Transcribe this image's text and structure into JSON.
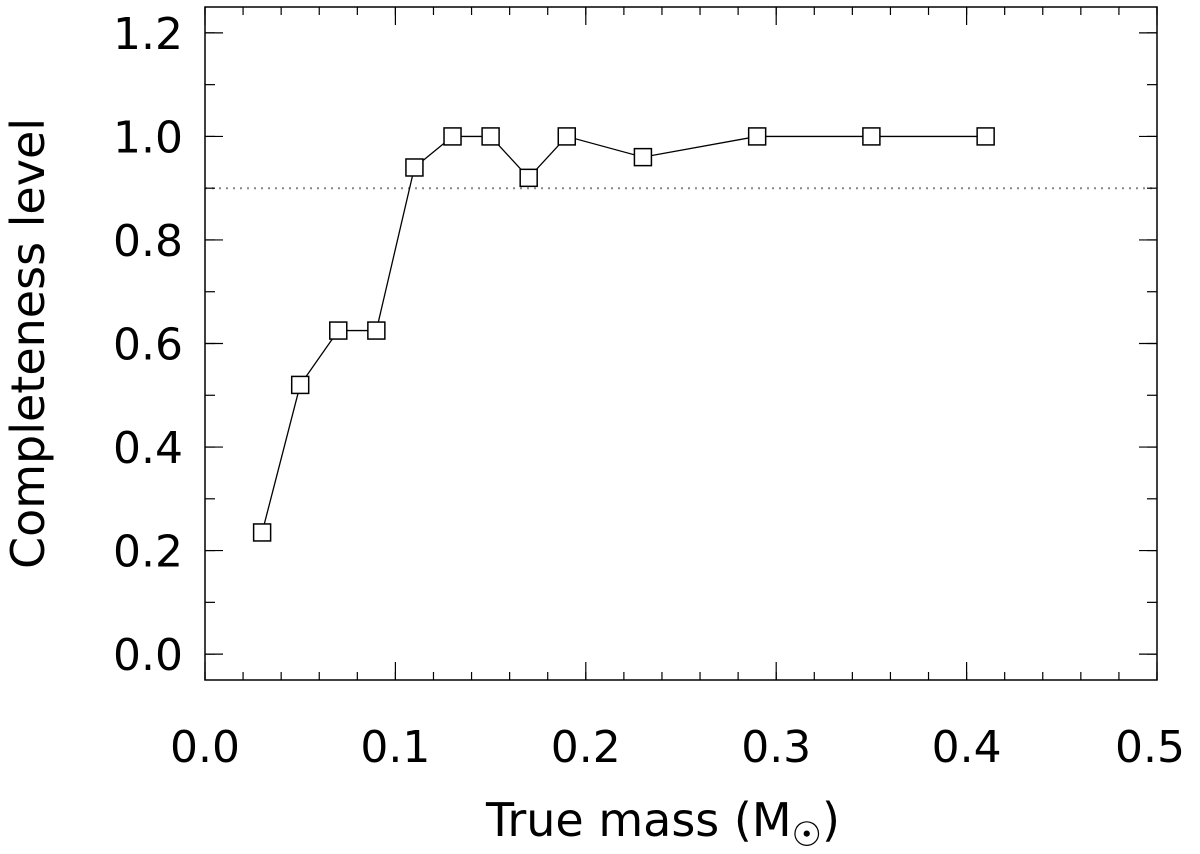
{
  "chart_data": {
    "type": "line",
    "xlabel": "True mass (M",
    "ylabel": "Completeness level",
    "xlim": [
      0.0,
      0.5
    ],
    "ylim": [
      -0.05,
      1.25
    ],
    "xticks": [
      {
        "value": 0.0,
        "label": "0.0"
      },
      {
        "value": 0.1,
        "label": "0.1"
      },
      {
        "value": 0.2,
        "label": "0.2"
      },
      {
        "value": 0.3,
        "label": "0.3"
      },
      {
        "value": 0.4,
        "label": "0.4"
      },
      {
        "value": 0.5,
        "label": "0.5"
      }
    ],
    "yticks": [
      {
        "value": 0.0,
        "label": "0.0"
      },
      {
        "value": 0.2,
        "label": "0.2"
      },
      {
        "value": 0.4,
        "label": "0.4"
      },
      {
        "value": 0.6,
        "label": "0.6"
      },
      {
        "value": 0.8,
        "label": "0.8"
      },
      {
        "value": 1.0,
        "label": "1.0"
      },
      {
        "value": 1.2,
        "label": "1.2"
      }
    ],
    "x_minor_step": 0.02,
    "y_minor_step": 0.1,
    "reference_line": {
      "y": 0.9,
      "style": "dotted",
      "color": "#888888"
    },
    "grid": false,
    "series": [
      {
        "marker": "square",
        "color": "#000000",
        "x": [
          0.03,
          0.05,
          0.07,
          0.09,
          0.11,
          0.13,
          0.15,
          0.17,
          0.19,
          0.23,
          0.29,
          0.35,
          0.41
        ],
        "y": [
          0.235,
          0.52,
          0.625,
          0.625,
          0.94,
          1.0,
          1.0,
          0.92,
          1.0,
          0.96,
          1.0,
          1.0,
          1.0
        ]
      }
    ]
  }
}
